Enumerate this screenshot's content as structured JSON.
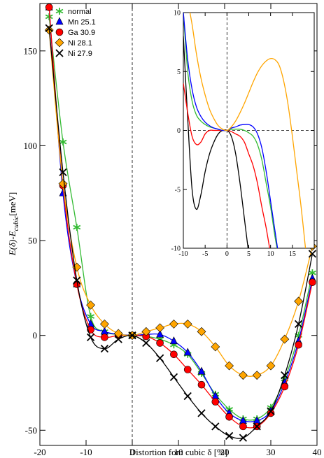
{
  "chart_data": [
    {
      "type": "line",
      "xlabel": "Distortion fom cubic δ [%]",
      "ylabel": "E(δ)-E",
      "ylabel_sub": "cubic",
      "ylabel_unit": "[meV]",
      "xlim": [
        -20,
        40
      ],
      "ylim": [
        -58,
        175
      ],
      "xticks": [
        -20,
        -10,
        0,
        10,
        20,
        30,
        40
      ],
      "yticks": [
        -50,
        0,
        50,
        100,
        150
      ],
      "legend": "upper left",
      "x": [
        -18,
        -15,
        -12,
        -9,
        -6,
        -3,
        0,
        3,
        6,
        9,
        12,
        15,
        18,
        21,
        24,
        27,
        30,
        33,
        36,
        39
      ],
      "series": [
        {
          "name": "normal",
          "color": "#33bb33",
          "marker": "star",
          "values": [
            168,
            102,
            57,
            10,
            2,
            0.5,
            0,
            -0.5,
            -2,
            -5,
            -10,
            -20,
            -31,
            -39,
            -44,
            -44,
            -38,
            -23,
            0,
            33
          ]
        },
        {
          "name": "Mn 25.1",
          "color": "#0000ff",
          "marker": "triangle",
          "values": [
            173,
            75,
            27,
            6,
            2,
            0.5,
            0,
            0.5,
            0.5,
            -3,
            -9,
            -19,
            -32,
            -41,
            -45,
            -45,
            -40,
            -25,
            -3,
            30
          ]
        },
        {
          "name": "Ga 30.9",
          "color": "#ff0000",
          "marker": "circle",
          "values": [
            173,
            79,
            27,
            3,
            -1,
            0,
            0,
            -0.5,
            -4,
            -10,
            -18,
            -26,
            -35,
            -43,
            -48,
            -48,
            -41,
            -27,
            -5,
            28
          ]
        },
        {
          "name": "Ni 28.1",
          "color": "#ffa500",
          "marker": "diamond",
          "values": [
            161,
            80,
            36,
            16,
            6,
            1,
            0,
            2,
            4,
            6,
            6,
            2,
            -6,
            -16,
            -21,
            -21,
            -16,
            -2,
            18,
            47
          ]
        },
        {
          "name": "Ni 27.9",
          "color": "#000000",
          "marker": "x",
          "values": [
            162,
            86,
            29,
            -1,
            -7,
            -2,
            0,
            -4,
            -12,
            -22,
            -32,
            -41,
            -48,
            -53,
            -54,
            -48,
            -40,
            -21,
            6,
            43
          ]
        }
      ]
    },
    {
      "type": "line",
      "xlim": [
        -10,
        20
      ],
      "ylim": [
        -10,
        10
      ],
      "xticks": [
        -10,
        -5,
        0,
        5,
        10,
        15
      ],
      "yticks": [
        -10,
        -5,
        0,
        5,
        10
      ],
      "series": [
        {
          "color": "#000000",
          "x": [
            -10,
            -9,
            -8,
            -7,
            -6,
            -5,
            -4,
            -3,
            -2,
            -1,
            0,
            1,
            2,
            3,
            4,
            5
          ],
          "values": [
            8,
            1,
            -5,
            -6.7,
            -5.5,
            -3.5,
            -2,
            -1,
            -0.3,
            0,
            0,
            -0.5,
            -2,
            -4.5,
            -7.5,
            -10.5
          ]
        },
        {
          "color": "#ff0000",
          "x": [
            -10,
            -9,
            -8,
            -7,
            -6,
            -5,
            -4,
            -3,
            -2,
            -1,
            0,
            1,
            2,
            3,
            4,
            5,
            6,
            7,
            8,
            9,
            10
          ],
          "values": [
            4,
            1.5,
            -0.5,
            -1.2,
            -1,
            -0.3,
            0,
            0,
            0,
            0,
            0,
            -0.1,
            -0.3,
            -0.5,
            -1,
            -2,
            -3,
            -4.5,
            -6.5,
            -8.3,
            -10.5
          ]
        },
        {
          "color": "#33bb33",
          "x": [
            -10,
            -9,
            -8,
            -7,
            -6,
            -5,
            -4,
            -3,
            -2,
            -1,
            0,
            1,
            2,
            3,
            4,
            5,
            6,
            7,
            8,
            9,
            10,
            11,
            12
          ],
          "values": [
            10,
            5,
            2.5,
            1.3,
            0.8,
            0.5,
            0.3,
            0.2,
            0.1,
            0,
            0,
            0.1,
            0.1,
            0.1,
            0,
            -0.2,
            -0.5,
            -1.2,
            -2.5,
            -4.5,
            -6.5,
            -9,
            -11
          ]
        },
        {
          "color": "#0000ff",
          "x": [
            -10,
            -9,
            -8,
            -7,
            -6,
            -5,
            -4,
            -3,
            -2,
            -1,
            0,
            1,
            2,
            3,
            4,
            5,
            6,
            7,
            8,
            9,
            10,
            11,
            12
          ],
          "values": [
            10,
            6,
            3.5,
            2,
            1.2,
            0.7,
            0.4,
            0.2,
            0.1,
            0,
            0,
            0.2,
            0.3,
            0.45,
            0.5,
            0.5,
            0.3,
            -0.3,
            -1.5,
            -3.5,
            -6,
            -8.5,
            -11
          ]
        },
        {
          "color": "#ffa500",
          "x": [
            -9,
            -8,
            -7,
            -6,
            -5,
            -4,
            -3,
            -2,
            -1,
            0,
            1,
            2,
            3,
            4,
            5,
            6,
            7,
            8,
            9,
            10,
            11,
            12,
            13,
            14,
            15,
            16,
            17,
            18
          ],
          "values": [
            11,
            9,
            6.5,
            4.5,
            3,
            1.8,
            1,
            0.4,
            0.1,
            0,
            0.3,
            0.8,
            1.5,
            2.3,
            3.2,
            4.1,
            4.9,
            5.5,
            5.9,
            6.1,
            6,
            5.5,
            4.2,
            2.2,
            -0.5,
            -3.5,
            -6.5,
            -10
          ]
        }
      ]
    }
  ]
}
